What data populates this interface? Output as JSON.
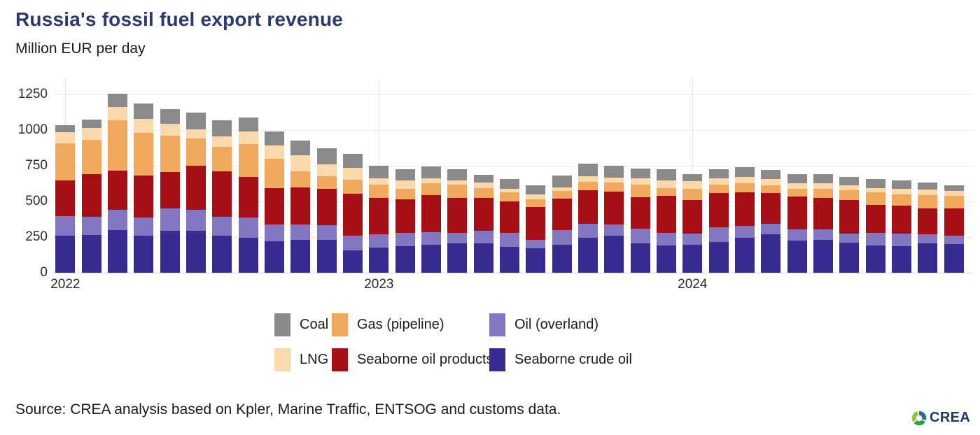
{
  "header": {
    "title": "Russia's fossil fuel export revenue",
    "subtitle": "Million EUR per day"
  },
  "footer": {
    "source": "Source: CREA analysis based on Kpler, Marine Traffic, ENTSOG and customs data.",
    "logo_text": "CREA"
  },
  "logo_colors": {
    "light_green": "#8cc63e",
    "blue": "#266b92",
    "green": "#2aa14c"
  },
  "chart_data": {
    "type": "bar",
    "stacked": true,
    "title": "Russia's fossil fuel export revenue",
    "ylabel": "Million EUR per day",
    "xlabel": "",
    "ylim": [
      0,
      1250
    ],
    "yticks": [
      0,
      250,
      500,
      750,
      1000,
      1250
    ],
    "grid": true,
    "legend_position": "bottom",
    "year_labels": [
      "2022",
      "2023",
      "2024"
    ],
    "year_tick_indices": [
      0,
      12,
      24
    ],
    "x": [
      "2022-01",
      "2022-02",
      "2022-03",
      "2022-04",
      "2022-05",
      "2022-06",
      "2022-07",
      "2022-08",
      "2022-09",
      "2022-10",
      "2022-11",
      "2022-12",
      "2023-01",
      "2023-02",
      "2023-03",
      "2023-04",
      "2023-05",
      "2023-06",
      "2023-07",
      "2023-08",
      "2023-09",
      "2023-10",
      "2023-11",
      "2023-12",
      "2024-01",
      "2024-02",
      "2024-03",
      "2024-04",
      "2024-05",
      "2024-06",
      "2024-07",
      "2024-08",
      "2024-09",
      "2024-10",
      "2024-11"
    ],
    "series": [
      {
        "name": "Seaborne crude oil",
        "color": "#372a90",
        "values": [
          260,
          265,
          300,
          260,
          295,
          295,
          260,
          245,
          220,
          230,
          230,
          155,
          175,
          185,
          195,
          205,
          205,
          180,
          170,
          195,
          245,
          260,
          205,
          190,
          195,
          215,
          245,
          270,
          225,
          230,
          210,
          190,
          185,
          205,
          200
        ]
      },
      {
        "name": "Oil (overland)",
        "color": "#8477c1",
        "values": [
          135,
          125,
          140,
          125,
          155,
          145,
          130,
          140,
          120,
          110,
          105,
          105,
          95,
          95,
          90,
          75,
          90,
          100,
          60,
          105,
          100,
          80,
          105,
          90,
          80,
          105,
          85,
          75,
          80,
          75,
          65,
          90,
          90,
          65,
          60
        ]
      },
      {
        "name": "Seaborne oil products",
        "color": "#a50f15",
        "values": [
          250,
          300,
          275,
          295,
          255,
          310,
          320,
          285,
          255,
          260,
          255,
          295,
          255,
          235,
          260,
          245,
          230,
          220,
          230,
          220,
          235,
          230,
          220,
          260,
          235,
          240,
          235,
          215,
          230,
          220,
          235,
          195,
          195,
          180,
          190
        ]
      },
      {
        "name": "Gas (pipeline)",
        "color": "#f1a95e",
        "values": [
          260,
          240,
          355,
          300,
          255,
          190,
          170,
          230,
          205,
          110,
          85,
          95,
          95,
          75,
          80,
          95,
          70,
          65,
          55,
          55,
          55,
          60,
          90,
          55,
          80,
          60,
          60,
          55,
          55,
          65,
          70,
          90,
          80,
          95,
          90
        ]
      },
      {
        "name": "LNG",
        "color": "#fbd9ac",
        "values": [
          80,
          85,
          90,
          100,
          85,
          65,
          75,
          90,
          90,
          115,
          85,
          85,
          40,
          55,
          35,
          25,
          35,
          25,
          35,
          25,
          40,
          35,
          40,
          50,
          50,
          40,
          45,
          40,
          35,
          35,
          35,
          30,
          40,
          40,
          35
        ]
      },
      {
        "name": "Coal",
        "color": "#8a8a8a",
        "values": [
          50,
          60,
          95,
          105,
          100,
          120,
          115,
          100,
          100,
          100,
          115,
          100,
          90,
          80,
          85,
          80,
          55,
          65,
          65,
          80,
          90,
          85,
          70,
          80,
          50,
          65,
          70,
          65,
          65,
          65,
          55,
          60,
          55,
          45,
          40
        ]
      }
    ],
    "legend_rows": [
      [
        "Coal",
        "Gas (pipeline)",
        "Oil (overland)"
      ],
      [
        "LNG",
        "Seaborne oil products",
        "Seaborne crude oil"
      ]
    ]
  }
}
